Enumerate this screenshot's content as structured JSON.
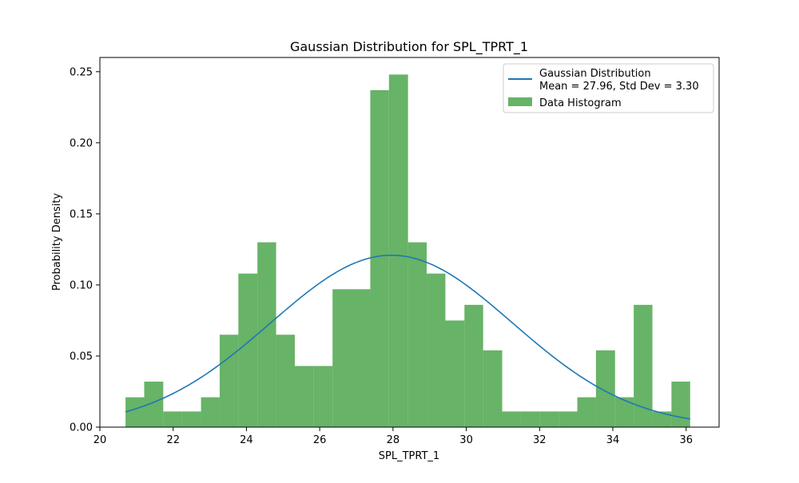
{
  "chart_data": {
    "type": "bar",
    "title": "Gaussian Distribution for SPL_TPRT_1",
    "xlabel": "SPL_TPRT_1",
    "ylabel": "Probability Density",
    "xlim": [
      20,
      36.9
    ],
    "ylim": [
      0,
      0.26
    ],
    "xticks": [
      20,
      22,
      24,
      26,
      28,
      30,
      32,
      34,
      36
    ],
    "yticks": [
      "0.00",
      "0.05",
      "0.10",
      "0.15",
      "0.20",
      "0.25"
    ],
    "histogram": {
      "name": "Data Histogram",
      "color": "#4CA64C",
      "bin_edges": [
        20.7,
        21.21,
        21.73,
        22.24,
        22.76,
        23.27,
        23.78,
        24.3,
        24.81,
        25.32,
        25.84,
        26.35,
        26.87,
        27.38,
        27.89,
        28.41,
        28.92,
        29.43,
        29.95,
        30.46,
        30.98,
        31.49,
        32.0,
        32.52,
        33.03,
        33.54,
        34.06,
        34.57,
        35.08,
        35.6,
        36.11
      ],
      "values": [
        0.021,
        0.032,
        0.011,
        0.011,
        0.021,
        0.065,
        0.108,
        0.13,
        0.065,
        0.043,
        0.043,
        0.097,
        0.097,
        0.237,
        0.248,
        0.13,
        0.108,
        0.075,
        0.086,
        0.054,
        0.011,
        0.011,
        0.011,
        0.011,
        0.021,
        0.054,
        0.021,
        0.086,
        0.011,
        0.032
      ]
    },
    "curve": {
      "name": "Gaussian Distribution\nMean = 27.96, Std Dev = 3.30",
      "name_line1": "Gaussian Distribution",
      "name_line2": "Mean = 27.96, Std Dev = 3.30",
      "color": "#1f77b4",
      "mean": 27.96,
      "std": 3.3,
      "x_range": [
        20.7,
        36.11
      ]
    },
    "grid": false,
    "legend_position": "top-right"
  }
}
